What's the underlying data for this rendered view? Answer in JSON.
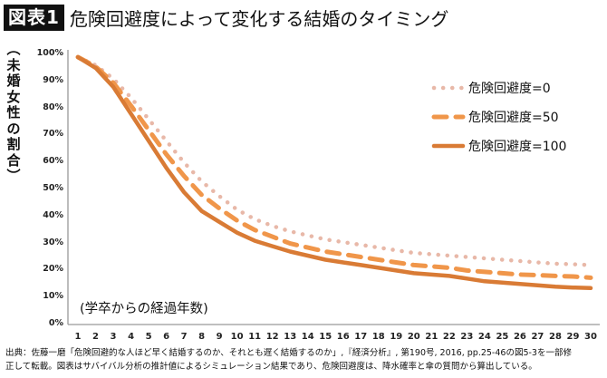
{
  "header": {
    "badge": "図表1",
    "title": "危険回避度によって変化する結婚のタイミング"
  },
  "chart_data": {
    "type": "line",
    "title": "危険回避度によって変化する結婚のタイミング",
    "ylabel": "（未婚女性の割合）",
    "xlabel": "(学卒からの経過年数)",
    "ylim": [
      0,
      100
    ],
    "y_ticks": [
      "0%",
      "10%",
      "20%",
      "30%",
      "40%",
      "50%",
      "60%",
      "70%",
      "80%",
      "90%",
      "100%"
    ],
    "x": [
      1,
      2,
      3,
      4,
      5,
      6,
      7,
      8,
      9,
      10,
      11,
      12,
      13,
      14,
      15,
      16,
      17,
      18,
      19,
      20,
      21,
      22,
      23,
      24,
      25,
      26,
      27,
      28,
      29,
      30
    ],
    "grid": false,
    "legend_position": "upper right",
    "series": [
      {
        "name": "危険回避度=0",
        "style": "dotted",
        "color": "#e8b8a8",
        "values": [
          99,
          96,
          91,
          84,
          76,
          68,
          60,
          53,
          47.5,
          42.5,
          39,
          36.5,
          34.5,
          33,
          31.5,
          30.5,
          29.5,
          28.5,
          27.5,
          26.5,
          26,
          25.5,
          25,
          24.5,
          24,
          23.5,
          23,
          22.5,
          22.3,
          22
        ]
      },
      {
        "name": "危険回避度=50",
        "style": "dashed",
        "color": "#f0964a",
        "values": [
          99,
          95.5,
          89.5,
          81,
          72,
          63,
          55,
          48,
          43,
          38.5,
          35,
          32.5,
          30,
          28.5,
          27,
          26,
          25,
          24,
          23,
          22,
          21.5,
          21,
          20,
          19.5,
          19,
          18.5,
          18.3,
          18,
          17.8,
          17.3
        ]
      },
      {
        "name": "危険回避度=100",
        "style": "solid",
        "color": "#d97b35",
        "values": [
          99,
          95,
          88,
          78,
          68,
          58,
          49,
          42,
          38,
          34,
          31,
          29,
          27,
          25.5,
          24,
          23,
          22,
          21,
          20,
          19,
          18.5,
          18,
          17,
          16,
          15.5,
          15,
          14.5,
          14,
          13.7,
          13.5
        ]
      }
    ]
  },
  "ylabel_chars": [
    "︵",
    "未",
    "婚",
    "女",
    "性",
    "の",
    "割",
    "合",
    "︶"
  ],
  "source": {
    "line1": "出典：佐藤一磨「危険回避的な人ほど早く結婚するのか、それとも遅く結婚するのか」,『経済分析』, 第190号, 2016, pp.25-46の図5-3を一部修",
    "line2": "正して転載。図表はサバイバル分析の推計値によるシミュレーション結果であり、危険回避度は、降水確率と傘の質問から算出している。"
  }
}
